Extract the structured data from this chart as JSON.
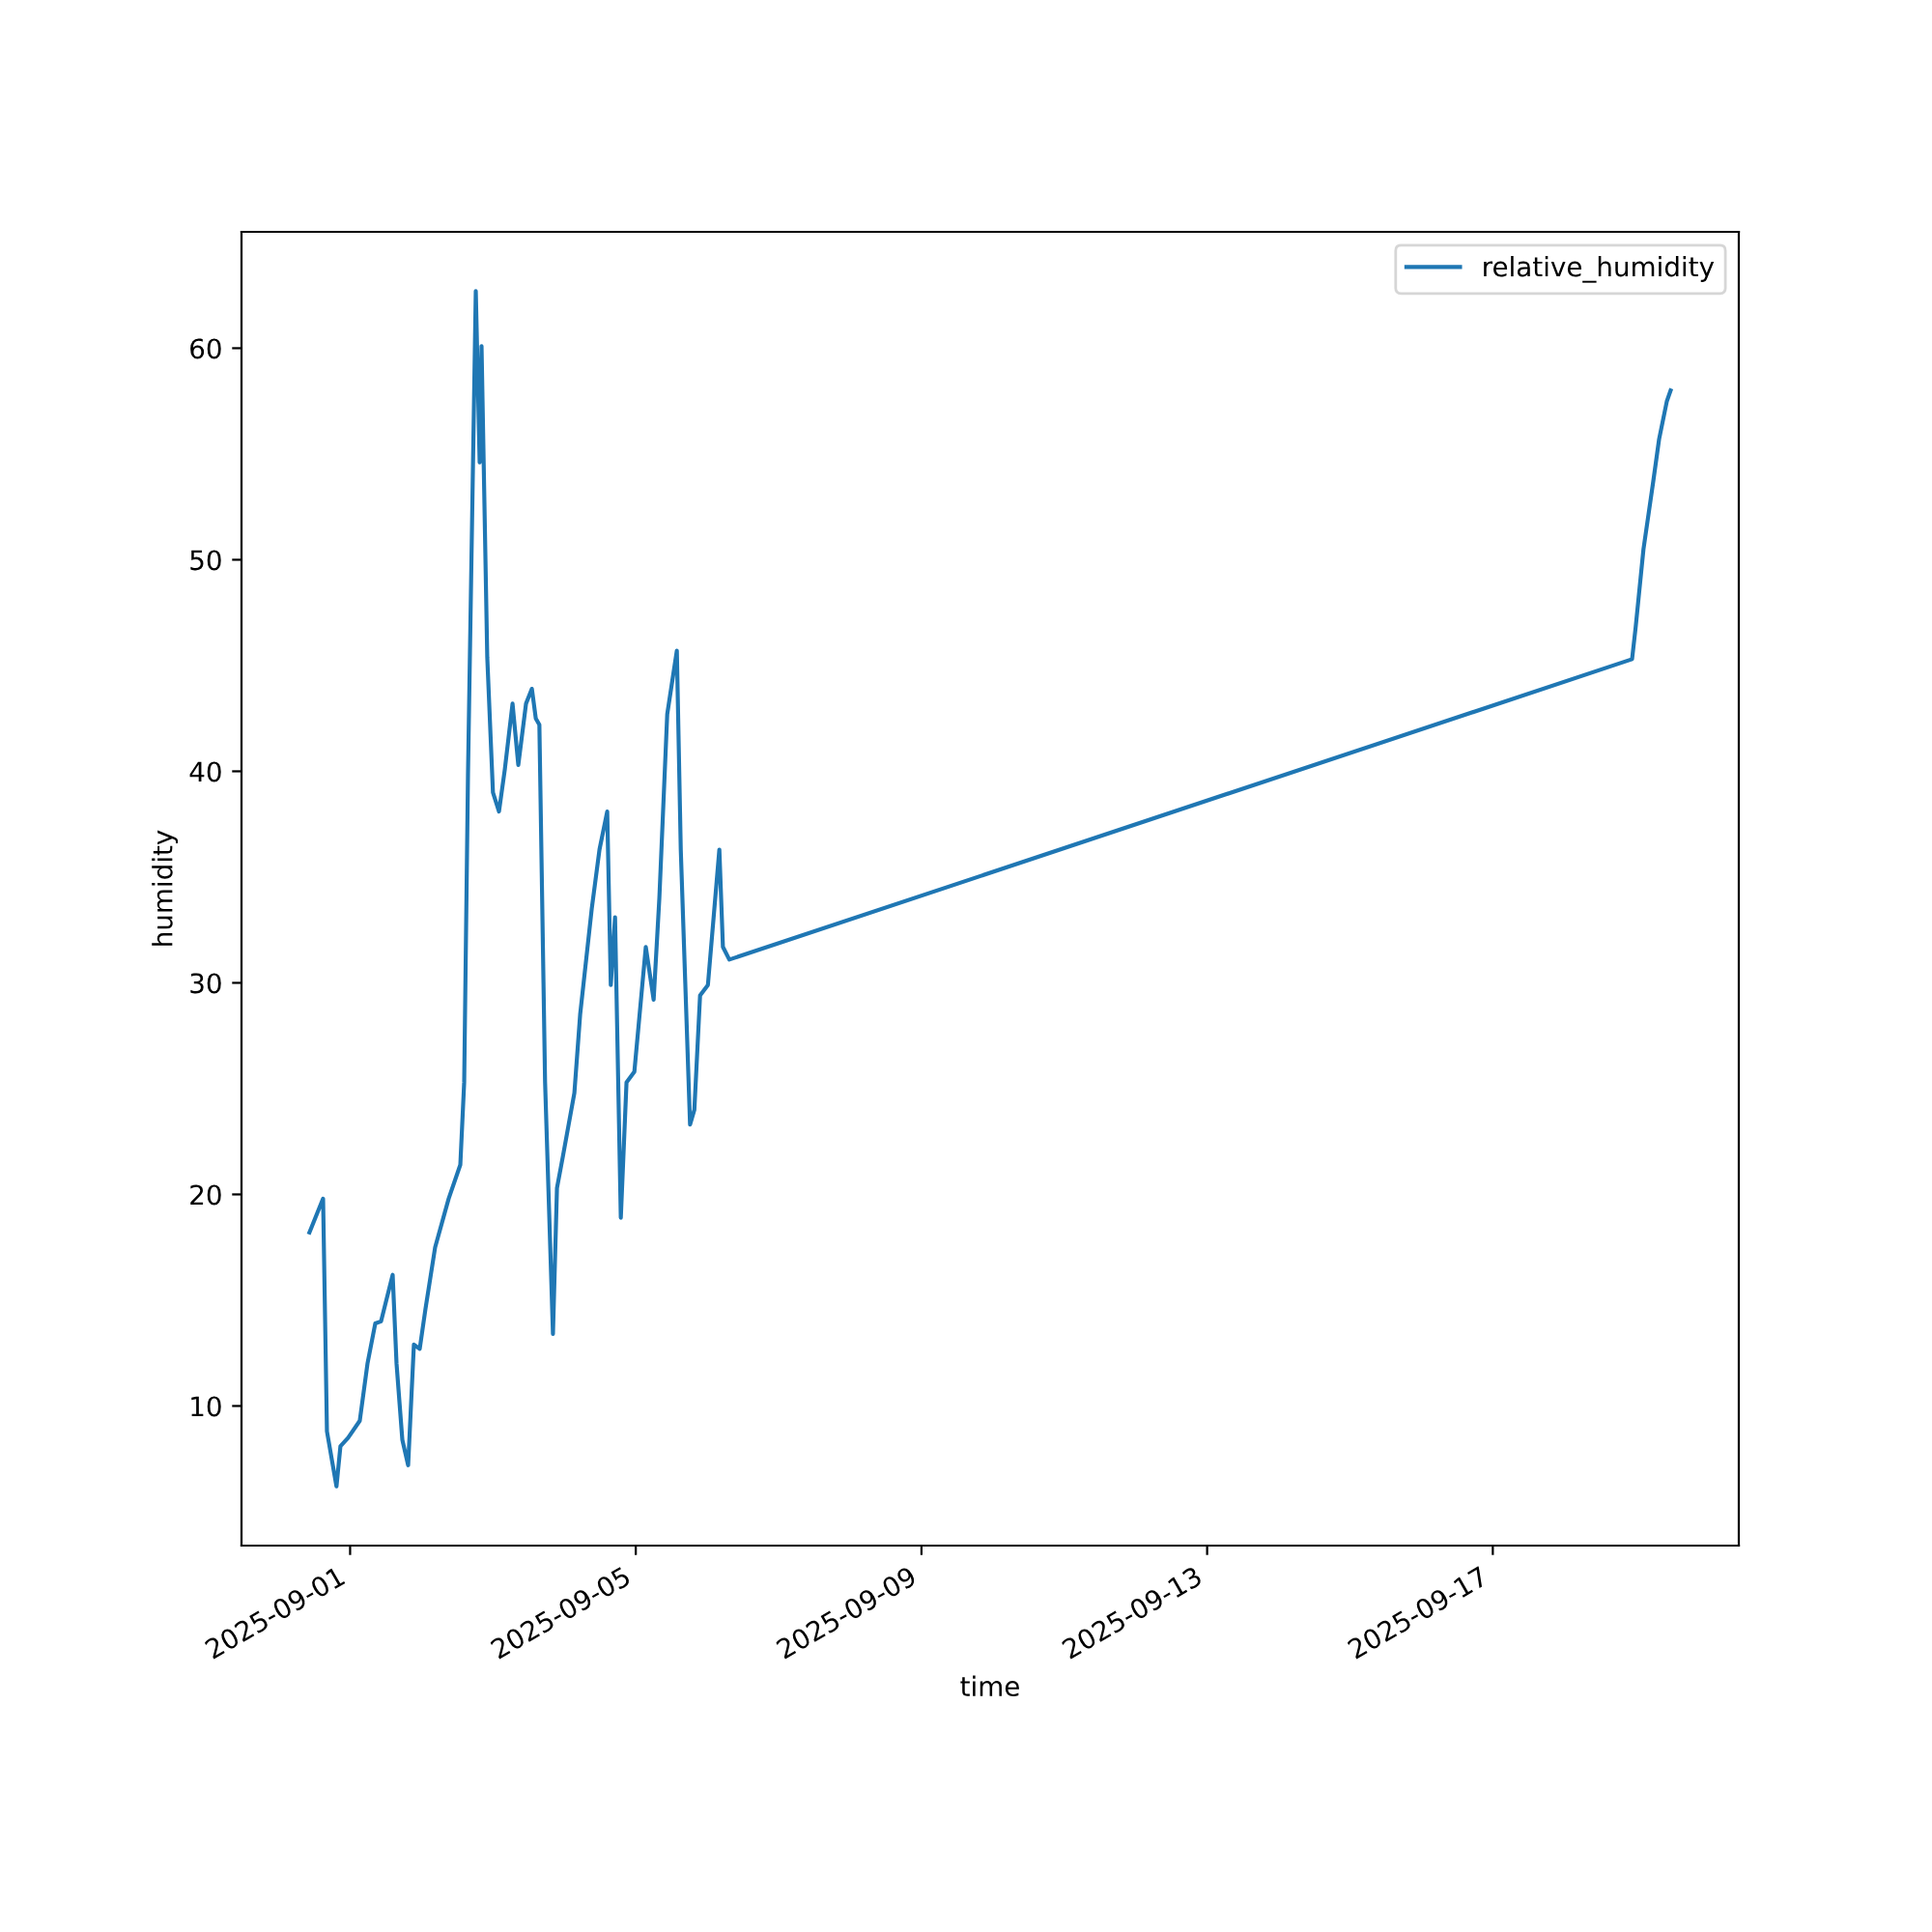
{
  "chart_data": {
    "type": "line",
    "xlabel": "time",
    "ylabel": "humidity",
    "legend": "top right",
    "xlim": [
      "2025-08-30T11:30",
      "2025-09-20T10:40"
    ],
    "ylim": [
      3.4,
      65.5
    ],
    "xticks": [
      "2025-09-01",
      "2025-09-05",
      "2025-09-09",
      "2025-09-13",
      "2025-09-17"
    ],
    "yticks": [
      10,
      20,
      30,
      40,
      50,
      60
    ],
    "x": [
      "2025-08-31T10:20",
      "2025-08-31T14:55",
      "2025-08-31T16:13",
      "2025-08-31T19:25",
      "2025-08-31T20:45",
      "2025-08-31T23:20",
      "2025-09-01T03:15",
      "2025-09-01T05:50",
      "2025-09-01T08:27",
      "2025-09-01T10:24",
      "2025-09-01T14:18",
      "2025-09-01T15:36",
      "2025-09-01T17:33",
      "2025-09-01T19:30",
      "2025-09-01T21:26",
      "2025-09-01T23:24",
      "2025-09-02T01:20",
      "2025-09-02T04:34",
      "2025-09-02T09:07",
      "2025-09-02T13:02",
      "2025-09-02T14:20",
      "2025-09-02T15:37",
      "2025-09-02T18:14",
      "2025-09-02T19:32",
      "2025-09-02T20:10",
      "2025-09-02T22:05",
      "2025-09-03T00:00",
      "2025-09-03T02:02",
      "2025-09-03T04:00",
      "2025-09-03T06:35",
      "2025-09-03T08:31",
      "2025-09-03T11:07",
      "2025-09-03T13:05",
      "2025-09-03T14:24",
      "2025-09-03T15:36",
      "2025-09-03T17:31",
      "2025-09-03T20:10",
      "2025-09-03T21:31",
      "2025-09-03T23:30",
      "2025-09-04T03:22",
      "2025-09-04T05:18",
      "2025-09-04T09:12",
      "2025-09-04T11:48",
      "2025-09-04T14:24",
      "2025-09-04T15:36",
      "2025-09-04T17:02",
      "2025-09-04T18:58",
      "2025-09-04T20:53",
      "2025-09-04T23:31",
      "2025-09-05T03:22",
      "2025-09-05T06:00",
      "2025-09-05T07:55",
      "2025-09-05T10:34",
      "2025-09-05T13:48",
      "2025-09-05T15:07",
      "2025-09-05T18:14",
      "2025-09-05T19:41",
      "2025-09-05T21:36",
      "2025-09-06T00:14",
      "2025-09-06T04:05",
      "2025-09-06T05:17",
      "2025-09-06T07:26",
      "2025-09-18T22:48",
      "2025-09-19T00:00",
      "2025-09-19T02:38",
      "2025-09-19T05:55",
      "2025-09-19T07:53",
      "2025-09-19T10:30",
      "2025-09-19T11:45"
    ],
    "series": [
      {
        "name": "relative_humidity",
        "color": "#1f77b4",
        "values": [
          18.2,
          19.8,
          8.8,
          6.2,
          8.1,
          8.5,
          9.3,
          12.0,
          13.9,
          14.0,
          16.2,
          12.0,
          8.4,
          7.2,
          12.9,
          12.7,
          14.6,
          17.5,
          19.8,
          21.4,
          25.3,
          39.9,
          62.7,
          54.6,
          60.1,
          45.4,
          39.0,
          38.1,
          40.1,
          43.2,
          40.3,
          43.2,
          43.9,
          42.5,
          42.2,
          25.3,
          13.4,
          20.3,
          21.8,
          24.8,
          28.5,
          33.5,
          36.3,
          38.1,
          29.9,
          33.1,
          18.9,
          25.3,
          25.8,
          31.7,
          29.2,
          34.0,
          42.7,
          45.7,
          36.3,
          23.3,
          24.0,
          29.4,
          29.9,
          36.3,
          31.7,
          31.1,
          45.3,
          46.8,
          50.5,
          53.7,
          55.7,
          57.5,
          58.0
        ]
      }
    ]
  }
}
